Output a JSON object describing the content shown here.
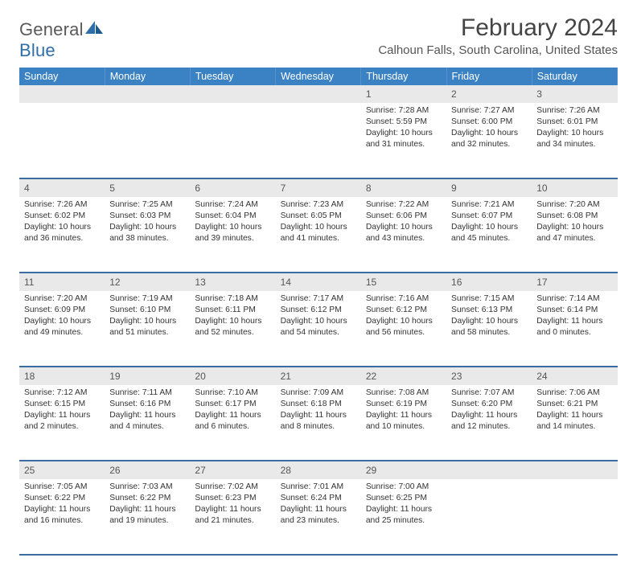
{
  "brand": {
    "part1": "General",
    "part2": "Blue"
  },
  "title": "February 2024",
  "location": "Calhoun Falls, South Carolina, United States",
  "colors": {
    "header_bg": "#3b82c4",
    "header_fg": "#ffffff",
    "daynum_bg": "#e9e9e9",
    "rule": "#3b6ea0",
    "text": "#333333",
    "logo_gray": "#5a5a5a",
    "logo_blue": "#2f6fa8"
  },
  "weekdays": [
    "Sunday",
    "Monday",
    "Tuesday",
    "Wednesday",
    "Thursday",
    "Friday",
    "Saturday"
  ],
  "weeks": [
    [
      null,
      null,
      null,
      null,
      {
        "n": "1",
        "sr": "Sunrise: 7:28 AM",
        "ss": "Sunset: 5:59 PM",
        "d1": "Daylight: 10 hours",
        "d2": "and 31 minutes."
      },
      {
        "n": "2",
        "sr": "Sunrise: 7:27 AM",
        "ss": "Sunset: 6:00 PM",
        "d1": "Daylight: 10 hours",
        "d2": "and 32 minutes."
      },
      {
        "n": "3",
        "sr": "Sunrise: 7:26 AM",
        "ss": "Sunset: 6:01 PM",
        "d1": "Daylight: 10 hours",
        "d2": "and 34 minutes."
      }
    ],
    [
      {
        "n": "4",
        "sr": "Sunrise: 7:26 AM",
        "ss": "Sunset: 6:02 PM",
        "d1": "Daylight: 10 hours",
        "d2": "and 36 minutes."
      },
      {
        "n": "5",
        "sr": "Sunrise: 7:25 AM",
        "ss": "Sunset: 6:03 PM",
        "d1": "Daylight: 10 hours",
        "d2": "and 38 minutes."
      },
      {
        "n": "6",
        "sr": "Sunrise: 7:24 AM",
        "ss": "Sunset: 6:04 PM",
        "d1": "Daylight: 10 hours",
        "d2": "and 39 minutes."
      },
      {
        "n": "7",
        "sr": "Sunrise: 7:23 AM",
        "ss": "Sunset: 6:05 PM",
        "d1": "Daylight: 10 hours",
        "d2": "and 41 minutes."
      },
      {
        "n": "8",
        "sr": "Sunrise: 7:22 AM",
        "ss": "Sunset: 6:06 PM",
        "d1": "Daylight: 10 hours",
        "d2": "and 43 minutes."
      },
      {
        "n": "9",
        "sr": "Sunrise: 7:21 AM",
        "ss": "Sunset: 6:07 PM",
        "d1": "Daylight: 10 hours",
        "d2": "and 45 minutes."
      },
      {
        "n": "10",
        "sr": "Sunrise: 7:20 AM",
        "ss": "Sunset: 6:08 PM",
        "d1": "Daylight: 10 hours",
        "d2": "and 47 minutes."
      }
    ],
    [
      {
        "n": "11",
        "sr": "Sunrise: 7:20 AM",
        "ss": "Sunset: 6:09 PM",
        "d1": "Daylight: 10 hours",
        "d2": "and 49 minutes."
      },
      {
        "n": "12",
        "sr": "Sunrise: 7:19 AM",
        "ss": "Sunset: 6:10 PM",
        "d1": "Daylight: 10 hours",
        "d2": "and 51 minutes."
      },
      {
        "n": "13",
        "sr": "Sunrise: 7:18 AM",
        "ss": "Sunset: 6:11 PM",
        "d1": "Daylight: 10 hours",
        "d2": "and 52 minutes."
      },
      {
        "n": "14",
        "sr": "Sunrise: 7:17 AM",
        "ss": "Sunset: 6:12 PM",
        "d1": "Daylight: 10 hours",
        "d2": "and 54 minutes."
      },
      {
        "n": "15",
        "sr": "Sunrise: 7:16 AM",
        "ss": "Sunset: 6:12 PM",
        "d1": "Daylight: 10 hours",
        "d2": "and 56 minutes."
      },
      {
        "n": "16",
        "sr": "Sunrise: 7:15 AM",
        "ss": "Sunset: 6:13 PM",
        "d1": "Daylight: 10 hours",
        "d2": "and 58 minutes."
      },
      {
        "n": "17",
        "sr": "Sunrise: 7:14 AM",
        "ss": "Sunset: 6:14 PM",
        "d1": "Daylight: 11 hours",
        "d2": "and 0 minutes."
      }
    ],
    [
      {
        "n": "18",
        "sr": "Sunrise: 7:12 AM",
        "ss": "Sunset: 6:15 PM",
        "d1": "Daylight: 11 hours",
        "d2": "and 2 minutes."
      },
      {
        "n": "19",
        "sr": "Sunrise: 7:11 AM",
        "ss": "Sunset: 6:16 PM",
        "d1": "Daylight: 11 hours",
        "d2": "and 4 minutes."
      },
      {
        "n": "20",
        "sr": "Sunrise: 7:10 AM",
        "ss": "Sunset: 6:17 PM",
        "d1": "Daylight: 11 hours",
        "d2": "and 6 minutes."
      },
      {
        "n": "21",
        "sr": "Sunrise: 7:09 AM",
        "ss": "Sunset: 6:18 PM",
        "d1": "Daylight: 11 hours",
        "d2": "and 8 minutes."
      },
      {
        "n": "22",
        "sr": "Sunrise: 7:08 AM",
        "ss": "Sunset: 6:19 PM",
        "d1": "Daylight: 11 hours",
        "d2": "and 10 minutes."
      },
      {
        "n": "23",
        "sr": "Sunrise: 7:07 AM",
        "ss": "Sunset: 6:20 PM",
        "d1": "Daylight: 11 hours",
        "d2": "and 12 minutes."
      },
      {
        "n": "24",
        "sr": "Sunrise: 7:06 AM",
        "ss": "Sunset: 6:21 PM",
        "d1": "Daylight: 11 hours",
        "d2": "and 14 minutes."
      }
    ],
    [
      {
        "n": "25",
        "sr": "Sunrise: 7:05 AM",
        "ss": "Sunset: 6:22 PM",
        "d1": "Daylight: 11 hours",
        "d2": "and 16 minutes."
      },
      {
        "n": "26",
        "sr": "Sunrise: 7:03 AM",
        "ss": "Sunset: 6:22 PM",
        "d1": "Daylight: 11 hours",
        "d2": "and 19 minutes."
      },
      {
        "n": "27",
        "sr": "Sunrise: 7:02 AM",
        "ss": "Sunset: 6:23 PM",
        "d1": "Daylight: 11 hours",
        "d2": "and 21 minutes."
      },
      {
        "n": "28",
        "sr": "Sunrise: 7:01 AM",
        "ss": "Sunset: 6:24 PM",
        "d1": "Daylight: 11 hours",
        "d2": "and 23 minutes."
      },
      {
        "n": "29",
        "sr": "Sunrise: 7:00 AM",
        "ss": "Sunset: 6:25 PM",
        "d1": "Daylight: 11 hours",
        "d2": "and 25 minutes."
      },
      null,
      null
    ]
  ]
}
